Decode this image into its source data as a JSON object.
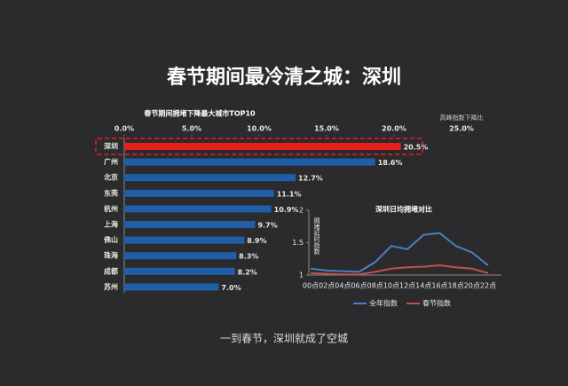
{
  "title": "春节期间最冷清之城：深圳",
  "caption": "一到春节，深圳就成了空城",
  "chart_data": [
    {
      "type": "bar",
      "orientation": "horizontal",
      "title": "春节期间拥堵下降最大城市TOP10",
      "xlabel": "高峰指数下降比",
      "categories": [
        "深圳",
        "广州",
        "北京",
        "东莞",
        "杭州",
        "上海",
        "佛山",
        "珠海",
        "成都",
        "苏州"
      ],
      "values": [
        20.5,
        18.6,
        12.7,
        11.1,
        10.9,
        9.7,
        8.9,
        8.3,
        8.2,
        7.0
      ],
      "value_labels": [
        "20.5%",
        "18.6%",
        "12.7%",
        "11.1%",
        "10.9%",
        "9.7%",
        "8.9%",
        "8.3%",
        "8.2%",
        "7.0%"
      ],
      "colors": [
        "#e8201c",
        "#1f5fa8",
        "#1f5fa8",
        "#1f5fa8",
        "#1f5fa8",
        "#1f5fa8",
        "#1f5fa8",
        "#1f5fa8",
        "#1f5fa8",
        "#1f5fa8"
      ],
      "xlim": [
        0,
        25
      ],
      "xticks": [
        {
          "value": 0,
          "label": "0.0%"
        },
        {
          "value": 5,
          "label": "5.0%"
        },
        {
          "value": 10,
          "label": "10.0%"
        },
        {
          "value": 15,
          "label": "15.0%"
        },
        {
          "value": 20,
          "label": "20.0%"
        },
        {
          "value": 25,
          "label": "25.0%"
        }
      ]
    },
    {
      "type": "line",
      "title": "深圳日均拥堵对比",
      "ylabel": "拥堵延时指数",
      "categories": [
        "00点",
        "02点",
        "04点",
        "06点",
        "08点",
        "10点",
        "12点",
        "14点",
        "16点",
        "18点",
        "20点",
        "22点"
      ],
      "series": [
        {
          "name": "全年指数",
          "color": "#4a7fc1",
          "values": [
            1.1,
            1.07,
            1.06,
            1.05,
            1.2,
            1.45,
            1.4,
            1.62,
            1.65,
            1.45,
            1.35,
            1.15
          ]
        },
        {
          "name": "春节指数",
          "color": "#c0504d",
          "values": [
            1.03,
            1.02,
            1.01,
            1.01,
            1.05,
            1.1,
            1.12,
            1.13,
            1.15,
            1.12,
            1.1,
            1.03
          ]
        }
      ],
      "ylim": [
        1,
        2
      ],
      "yticks": [
        1,
        1.5,
        2
      ],
      "legend": "bottom"
    }
  ]
}
